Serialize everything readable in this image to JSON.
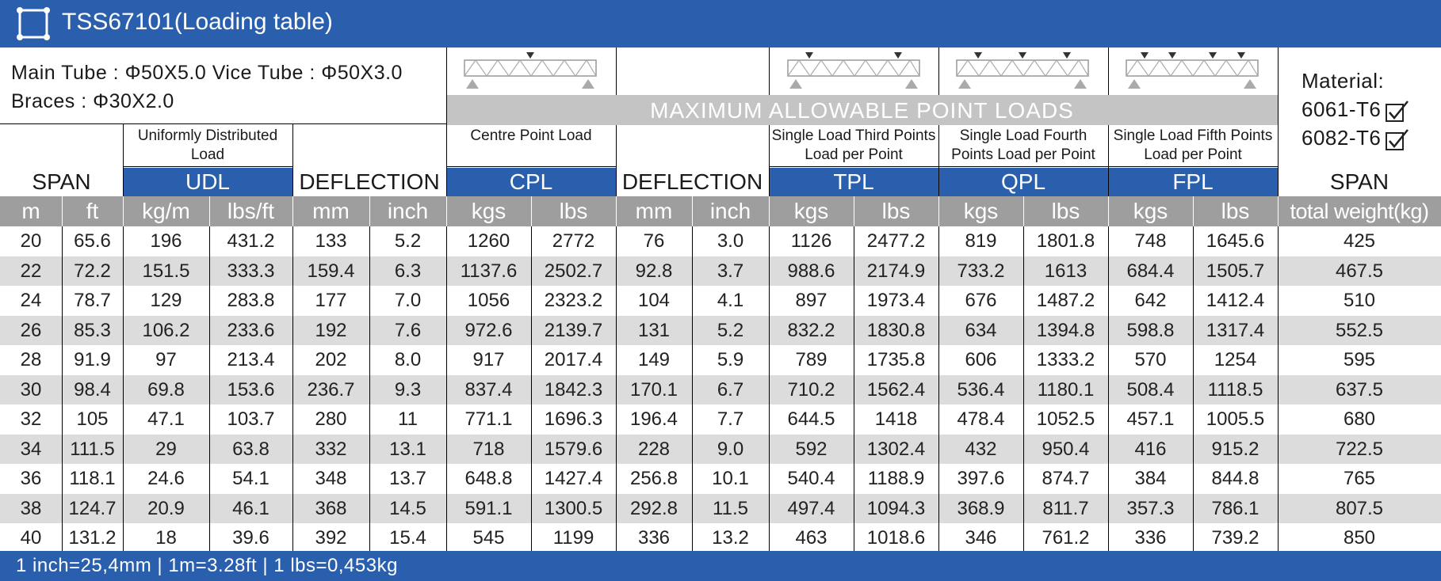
{
  "colors": {
    "blue": "#2a5fad",
    "gray_band": "#c4c4c4",
    "unit_gray": "#9e9e9e",
    "alt_row": "#dcdcdc"
  },
  "header": {
    "title": "TSS67101(Loading table)",
    "icon": "square-frame-icon"
  },
  "specs": {
    "line1": "Main Tube : Φ50X5.0   Vice Tube : Φ50X3.0",
    "line2": "Braces : Φ30X2.0"
  },
  "band_title": "MAXIMUM ALLOWABLE POINT LOADS",
  "material": {
    "label": "Material:",
    "options": [
      "6061-T6",
      "6082-T6"
    ]
  },
  "groups": {
    "span": "SPAN",
    "udl": {
      "label": "UDL",
      "desc": "Uniformly Distributed Load"
    },
    "deflection1": "DEFLECTION",
    "cpl": {
      "label": "CPL",
      "desc": "Centre Point Load"
    },
    "deflection2": "DEFLECTION",
    "tpl": {
      "label": "TPL",
      "desc": "Single Load Third Points Load per Point"
    },
    "qpl": {
      "label": "QPL",
      "desc": "Single Load Fourth Points Load per Point"
    },
    "fpl": {
      "label": "FPL",
      "desc": "Single Load Fifth Points Load per Point"
    },
    "span2": "SPAN"
  },
  "units": [
    "m",
    "ft",
    "kg/m",
    "lbs/ft",
    "mm",
    "inch",
    "kgs",
    "lbs",
    "mm",
    "inch",
    "kgs",
    "lbs",
    "kgs",
    "lbs",
    "kgs",
    "lbs",
    "total weight(kg)"
  ],
  "rows": [
    [
      "20",
      "65.6",
      "196",
      "431.2",
      "133",
      "5.2",
      "1260",
      "2772",
      "76",
      "3.0",
      "1126",
      "2477.2",
      "819",
      "1801.8",
      "748",
      "1645.6",
      "425"
    ],
    [
      "22",
      "72.2",
      "151.5",
      "333.3",
      "159.4",
      "6.3",
      "1137.6",
      "2502.7",
      "92.8",
      "3.7",
      "988.6",
      "2174.9",
      "733.2",
      "1613",
      "684.4",
      "1505.7",
      "467.5"
    ],
    [
      "24",
      "78.7",
      "129",
      "283.8",
      "177",
      "7.0",
      "1056",
      "2323.2",
      "104",
      "4.1",
      "897",
      "1973.4",
      "676",
      "1487.2",
      "642",
      "1412.4",
      "510"
    ],
    [
      "26",
      "85.3",
      "106.2",
      "233.6",
      "192",
      "7.6",
      "972.6",
      "2139.7",
      "131",
      "5.2",
      "832.2",
      "1830.8",
      "634",
      "1394.8",
      "598.8",
      "1317.4",
      "552.5"
    ],
    [
      "28",
      "91.9",
      "97",
      "213.4",
      "202",
      "8.0",
      "917",
      "2017.4",
      "149",
      "5.9",
      "789",
      "1735.8",
      "606",
      "1333.2",
      "570",
      "1254",
      "595"
    ],
    [
      "30",
      "98.4",
      "69.8",
      "153.6",
      "236.7",
      "9.3",
      "837.4",
      "1842.3",
      "170.1",
      "6.7",
      "710.2",
      "1562.4",
      "536.4",
      "1180.1",
      "508.4",
      "1118.5",
      "637.5"
    ],
    [
      "32",
      "105",
      "47.1",
      "103.7",
      "280",
      "11",
      "771.1",
      "1696.3",
      "196.4",
      "7.7",
      "644.5",
      "1418",
      "478.4",
      "1052.5",
      "457.1",
      "1005.5",
      "680"
    ],
    [
      "34",
      "111.5",
      "29",
      "63.8",
      "332",
      "13.1",
      "718",
      "1579.6",
      "228",
      "9.0",
      "592",
      "1302.4",
      "432",
      "950.4",
      "416",
      "915.2",
      "722.5"
    ],
    [
      "36",
      "118.1",
      "24.6",
      "54.1",
      "348",
      "13.7",
      "648.8",
      "1427.4",
      "256.8",
      "10.1",
      "540.4",
      "1188.9",
      "397.6",
      "874.7",
      "384",
      "844.8",
      "765"
    ],
    [
      "38",
      "124.7",
      "20.9",
      "46.1",
      "368",
      "14.5",
      "591.1",
      "1300.5",
      "292.8",
      "11.5",
      "497.4",
      "1094.3",
      "368.9",
      "811.7",
      "357.3",
      "786.1",
      "807.5"
    ],
    [
      "40",
      "131.2",
      "18",
      "39.6",
      "392",
      "15.4",
      "545",
      "1199",
      "336",
      "13.2",
      "463",
      "1018.6",
      "346",
      "761.2",
      "336",
      "739.2",
      "850"
    ]
  ],
  "footer": "1 inch=25,4mm  |  1m=3.28ft  |  1 lbs=0,453kg"
}
